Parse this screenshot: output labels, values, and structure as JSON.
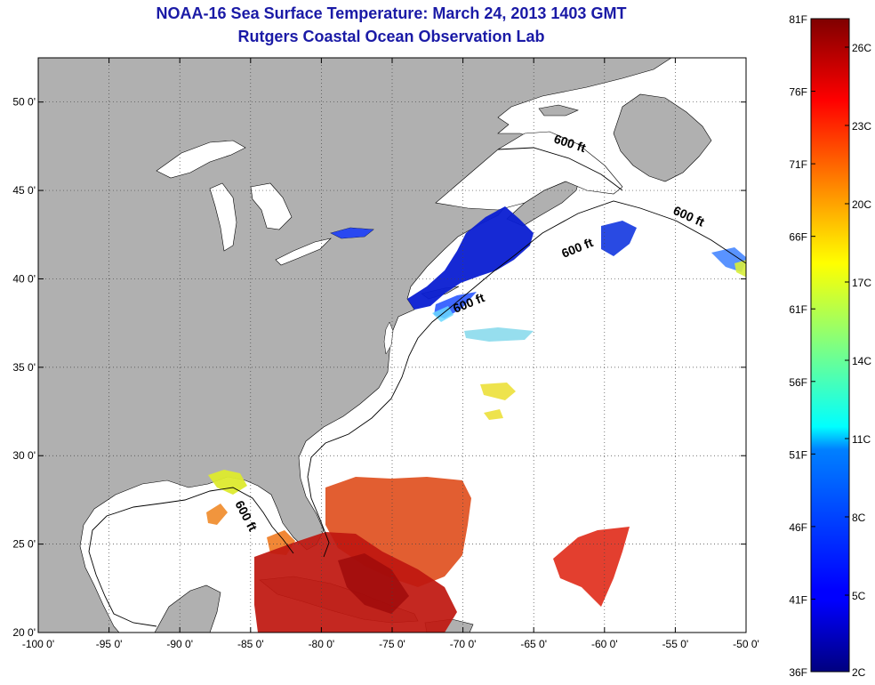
{
  "header": {
    "title": "NOAA-16 Sea Surface Temperature:  March 24, 2013 1403 GMT",
    "subtitle": "Rutgers Coastal Ocean Observation Lab"
  },
  "map": {
    "lon_range": [
      -100,
      -50
    ],
    "lat_range": [
      20,
      52.5
    ],
    "lon_ticks": [
      {
        "v": -100,
        "label": "-100 0'"
      },
      {
        "v": -95,
        "label": "-95 0'"
      },
      {
        "v": -90,
        "label": "-90 0'"
      },
      {
        "v": -85,
        "label": "-85 0'"
      },
      {
        "v": -80,
        "label": "-80 0'"
      },
      {
        "v": -75,
        "label": "-75 0'"
      },
      {
        "v": -70,
        "label": "-70 0'"
      },
      {
        "v": -65,
        "label": "-65 0'"
      },
      {
        "v": -60,
        "label": "-60 0'"
      },
      {
        "v": -55,
        "label": "-55 0'"
      },
      {
        "v": -50,
        "label": "-50 0'"
      }
    ],
    "lat_ticks": [
      {
        "v": 20,
        "label": "20 0'"
      },
      {
        "v": 25,
        "label": "25 0'"
      },
      {
        "v": 30,
        "label": "30 0'"
      },
      {
        "v": 35,
        "label": "35 0'"
      },
      {
        "v": 40,
        "label": "40 0'"
      },
      {
        "v": 45,
        "label": "45 0'"
      },
      {
        "v": 50,
        "label": "50 0'"
      }
    ],
    "isobath_label": "600 ft",
    "land_color": "#b0b0b0",
    "water_color": "#ffffff"
  },
  "colorbar": {
    "fahrenheit_ticks": [
      "81F",
      "76F",
      "71F",
      "66F",
      "61F",
      "56F",
      "51F",
      "46F",
      "41F",
      "36F"
    ],
    "celsius_ticks": [
      "26C",
      "23C",
      "20C",
      "17C",
      "14C",
      "11C",
      "8C",
      "5C",
      "2C"
    ],
    "colormap": "jet"
  }
}
